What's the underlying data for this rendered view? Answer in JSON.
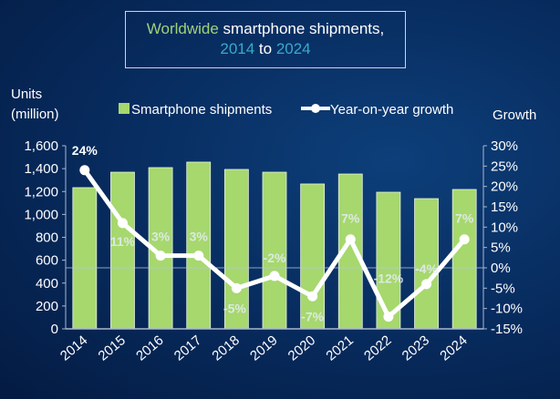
{
  "title": {
    "part1": "Worldwide",
    "part2": " smartphone shipments,",
    "year1": "2014",
    "mid": " to ",
    "year2": "2024"
  },
  "colors": {
    "bar": "#a6d86e",
    "line": "#ffffff",
    "bg": "#072a5c"
  },
  "chart_data": {
    "type": "bar+line",
    "categories": [
      "2014",
      "2015",
      "2016",
      "2017",
      "2018",
      "2019",
      "2020",
      "2021",
      "2022",
      "2023",
      "2024"
    ],
    "series": [
      {
        "name": "Smartphone shipments",
        "type": "bar",
        "axis": "left",
        "values": [
          1234,
          1369,
          1409,
          1457,
          1393,
          1369,
          1266,
          1353,
          1194,
          1138,
          1218
        ]
      },
      {
        "name": "Year-on-year growth",
        "type": "line",
        "axis": "right",
        "values": [
          24,
          11,
          3,
          3,
          -5,
          -2,
          -7,
          7,
          -12,
          -4,
          7
        ],
        "labels": [
          "24%",
          "11%",
          "3%",
          "3%",
          "-5%",
          "-2%",
          "-7%",
          "7%",
          "-12%",
          "-4%",
          "7%"
        ]
      }
    ],
    "ylabel_left": [
      "Units",
      "(million)"
    ],
    "ylim_left": [
      0,
      1600
    ],
    "yticks_left": [
      "0",
      "200",
      "400",
      "600",
      "800",
      "1,000",
      "1,200",
      "1,400",
      "1,600"
    ],
    "ylabel_right": "Growth",
    "ylim_right": [
      -15,
      30
    ],
    "yticks_right": [
      "-15%",
      "-10%",
      "-5%",
      "0%",
      "5%",
      "10%",
      "15%",
      "20%",
      "25%",
      "30%"
    ],
    "legend": [
      "Smartphone shipments",
      "Year-on-year growth"
    ],
    "legend_placement": "top"
  }
}
